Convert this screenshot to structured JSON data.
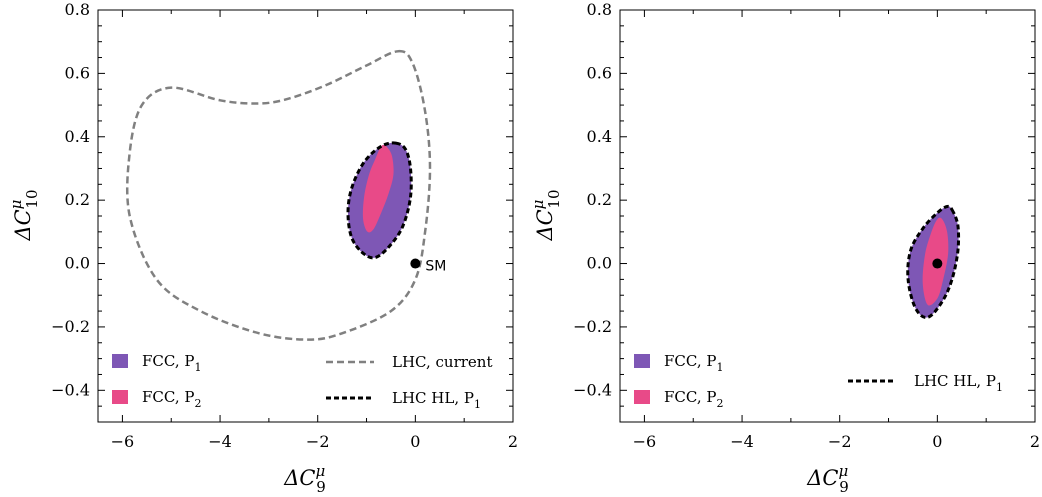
{
  "colors": {
    "fcc_p1": "#7e57b5",
    "fcc_p2": "#e84a88",
    "lhc_current": "#808080",
    "lhc_hl": "#000000",
    "axis": "#000000"
  },
  "chart_data": [
    {
      "type": "area",
      "panel": "left",
      "xlabel_base": "ΔC",
      "xlabel_sup": "μ",
      "xlabel_sub": "9",
      "ylabel_base": "ΔC",
      "ylabel_sup": "μ",
      "ylabel_sub": "10",
      "xlim": [
        -6.5,
        2
      ],
      "ylim": [
        -0.5,
        0.8
      ],
      "xticks": [
        -6,
        -4,
        -2,
        0,
        2
      ],
      "yticks": [
        -0.4,
        -0.2,
        0.0,
        0.2,
        0.4,
        0.6,
        0.8
      ],
      "xtick_labels": [
        "−6",
        "−4",
        "−2",
        "0",
        "2"
      ],
      "ytick_labels": [
        "−0.4",
        "−0.2",
        "0.0",
        "0.2",
        "0.4",
        "0.6",
        "0.8"
      ],
      "grid": false,
      "legend": [
        {
          "label_main": "FCC, P",
          "label_sub": "1",
          "style": "fill",
          "color_key": "fcc_p1",
          "placement": "bottom-left"
        },
        {
          "label_main": "FCC, P",
          "label_sub": "2",
          "style": "fill",
          "color_key": "fcc_p2",
          "placement": "bottom-left"
        },
        {
          "label_main": "LHC, current",
          "label_sub": "",
          "style": "dashed",
          "color_key": "lhc_current",
          "placement": "bottom-right"
        },
        {
          "label_main": "LHC HL, P",
          "label_sub": "1",
          "style": "dashed",
          "color_key": "lhc_hl",
          "placement": "bottom-right"
        }
      ],
      "series": [
        {
          "key": "lhc_current",
          "style": "dashed",
          "points": [
            [
              -0.35,
              0.67
            ],
            [
              -0.05,
              0.63
            ],
            [
              0.2,
              0.48
            ],
            [
              0.3,
              0.3
            ],
            [
              0.2,
              0.1
            ],
            [
              0.0,
              -0.05
            ],
            [
              -0.5,
              -0.15
            ],
            [
              -1.5,
              -0.22
            ],
            [
              -2.2,
              -0.24
            ],
            [
              -3.2,
              -0.22
            ],
            [
              -4.4,
              -0.15
            ],
            [
              -5.3,
              -0.05
            ],
            [
              -5.85,
              0.15
            ],
            [
              -5.85,
              0.35
            ],
            [
              -5.6,
              0.5
            ],
            [
              -5.0,
              0.555
            ],
            [
              -4.0,
              0.515
            ],
            [
              -3.2,
              0.505
            ],
            [
              -2.6,
              0.52
            ],
            [
              -1.8,
              0.565
            ],
            [
              -1.0,
              0.625
            ]
          ]
        },
        {
          "key": "fcc_p1",
          "style": "fill",
          "points": [
            [
              -0.4,
              0.38
            ],
            [
              -0.2,
              0.36
            ],
            [
              -0.1,
              0.3
            ],
            [
              -0.1,
              0.21
            ],
            [
              -0.25,
              0.12
            ],
            [
              -0.5,
              0.06
            ],
            [
              -0.8,
              0.02
            ],
            [
              -1.05,
              0.03
            ],
            [
              -1.3,
              0.08
            ],
            [
              -1.38,
              0.16
            ],
            [
              -1.3,
              0.24
            ],
            [
              -1.05,
              0.32
            ],
            [
              -0.7,
              0.37
            ]
          ]
        },
        {
          "key": "fcc_p2",
          "style": "fill",
          "points": [
            [
              -0.6,
              0.37
            ],
            [
              -0.48,
              0.34
            ],
            [
              -0.45,
              0.28
            ],
            [
              -0.55,
              0.22
            ],
            [
              -0.7,
              0.16
            ],
            [
              -0.85,
              0.11
            ],
            [
              -0.98,
              0.1
            ],
            [
              -1.07,
              0.14
            ],
            [
              -1.05,
              0.21
            ],
            [
              -0.95,
              0.28
            ],
            [
              -0.82,
              0.33
            ],
            [
              -0.7,
              0.37
            ]
          ]
        },
        {
          "key": "lhc_hl",
          "style": "dashed",
          "points": [
            [
              -0.4,
              0.38
            ],
            [
              -0.2,
              0.36
            ],
            [
              -0.1,
              0.3
            ],
            [
              -0.1,
              0.21
            ],
            [
              -0.25,
              0.12
            ],
            [
              -0.5,
              0.06
            ],
            [
              -0.8,
              0.02
            ],
            [
              -1.05,
              0.03
            ],
            [
              -1.3,
              0.08
            ],
            [
              -1.38,
              0.16
            ],
            [
              -1.3,
              0.24
            ],
            [
              -1.05,
              0.32
            ],
            [
              -0.7,
              0.37
            ]
          ]
        }
      ],
      "annotation": {
        "text": "SM",
        "x": 0,
        "y": 0
      }
    },
    {
      "type": "area",
      "panel": "right",
      "xlabel_base": "ΔC",
      "xlabel_sup": "μ",
      "xlabel_sub": "9",
      "ylabel_base": "ΔC",
      "ylabel_sup": "μ",
      "ylabel_sub": "10",
      "xlim": [
        -6.5,
        2
      ],
      "ylim": [
        -0.5,
        0.8
      ],
      "xticks": [
        -6,
        -4,
        -2,
        0,
        2
      ],
      "yticks": [
        -0.4,
        -0.2,
        0.0,
        0.2,
        0.4,
        0.6,
        0.8
      ],
      "xtick_labels": [
        "−6",
        "−4",
        "−2",
        "0",
        "2"
      ],
      "ytick_labels": [
        "−0.4",
        "−0.2",
        "0.0",
        "0.2",
        "0.4",
        "0.6",
        "0.8"
      ],
      "grid": false,
      "legend": [
        {
          "label_main": "FCC, P",
          "label_sub": "1",
          "style": "fill",
          "color_key": "fcc_p1",
          "placement": "bottom-left"
        },
        {
          "label_main": "FCC, P",
          "label_sub": "2",
          "style": "fill",
          "color_key": "fcc_p2",
          "placement": "bottom-left"
        },
        {
          "label_main": "LHC HL, P",
          "label_sub": "1",
          "style": "dashed",
          "color_key": "lhc_hl",
          "placement": "bottom-right"
        }
      ],
      "series": [
        {
          "key": "fcc_p1",
          "style": "fill",
          "points": [
            [
              0.3,
              0.17
            ],
            [
              0.42,
              0.12
            ],
            [
              0.42,
              0.04
            ],
            [
              0.3,
              -0.05
            ],
            [
              0.1,
              -0.12
            ],
            [
              -0.2,
              -0.17
            ],
            [
              -0.45,
              -0.14
            ],
            [
              -0.6,
              -0.05
            ],
            [
              -0.55,
              0.04
            ],
            [
              -0.3,
              0.11
            ],
            [
              0.0,
              0.16
            ],
            [
              0.2,
              0.18
            ]
          ]
        },
        {
          "key": "fcc_p2",
          "style": "fill",
          "points": [
            [
              0.1,
              0.14
            ],
            [
              0.2,
              0.1
            ],
            [
              0.22,
              0.03
            ],
            [
              0.12,
              -0.05
            ],
            [
              0.0,
              -0.11
            ],
            [
              -0.2,
              -0.13
            ],
            [
              -0.3,
              -0.06
            ],
            [
              -0.25,
              0.03
            ],
            [
              -0.12,
              0.1
            ],
            [
              0.0,
              0.14
            ]
          ]
        },
        {
          "key": "lhc_hl",
          "style": "dashed",
          "points": [
            [
              0.3,
              0.17
            ],
            [
              0.42,
              0.12
            ],
            [
              0.42,
              0.04
            ],
            [
              0.3,
              -0.05
            ],
            [
              0.1,
              -0.12
            ],
            [
              -0.2,
              -0.17
            ],
            [
              -0.45,
              -0.14
            ],
            [
              -0.6,
              -0.05
            ],
            [
              -0.55,
              0.04
            ],
            [
              -0.3,
              0.11
            ],
            [
              0.0,
              0.16
            ],
            [
              0.2,
              0.18
            ]
          ]
        }
      ],
      "annotation": {
        "text": "",
        "x": 0,
        "y": 0
      }
    }
  ]
}
